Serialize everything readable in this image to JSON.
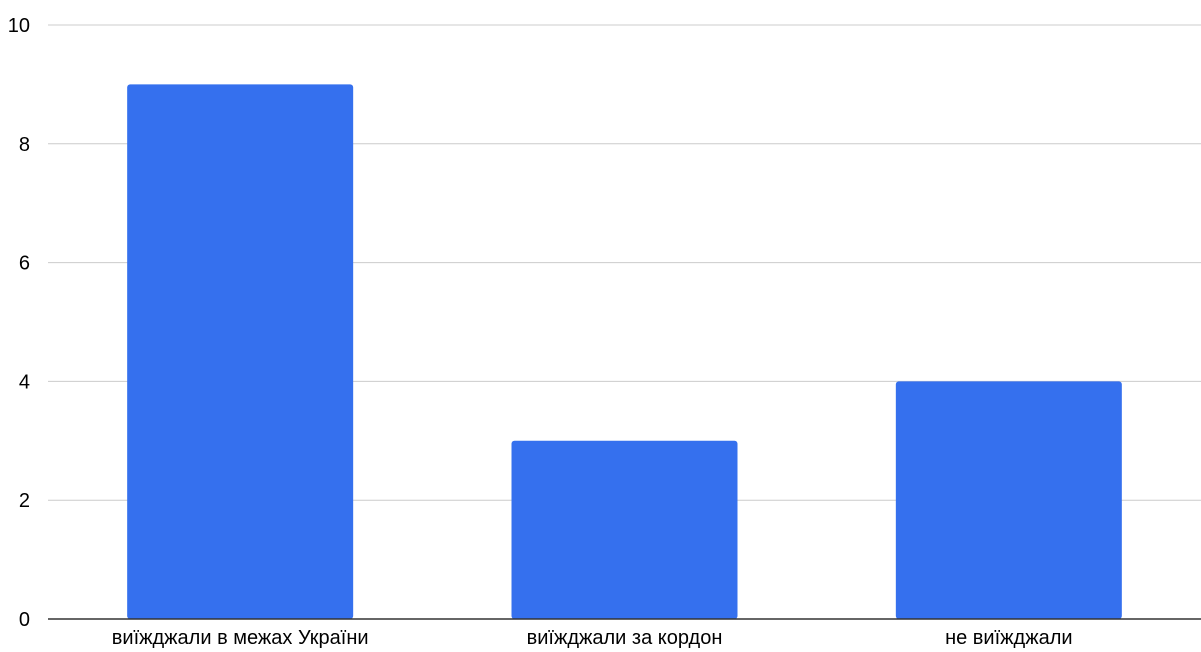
{
  "chart_data": {
    "type": "bar",
    "categories": [
      "виїжджали в межах України",
      "виїжджали за кордон",
      "не виїжджали"
    ],
    "values": [
      9,
      3,
      4
    ],
    "ylim": [
      0,
      10
    ],
    "yticks": [
      0,
      2,
      4,
      6,
      8,
      10
    ],
    "grid": true,
    "legend": "none",
    "colors": {
      "bar": "#3570ee",
      "grid": "#cccccc",
      "axis": "#333333"
    }
  }
}
